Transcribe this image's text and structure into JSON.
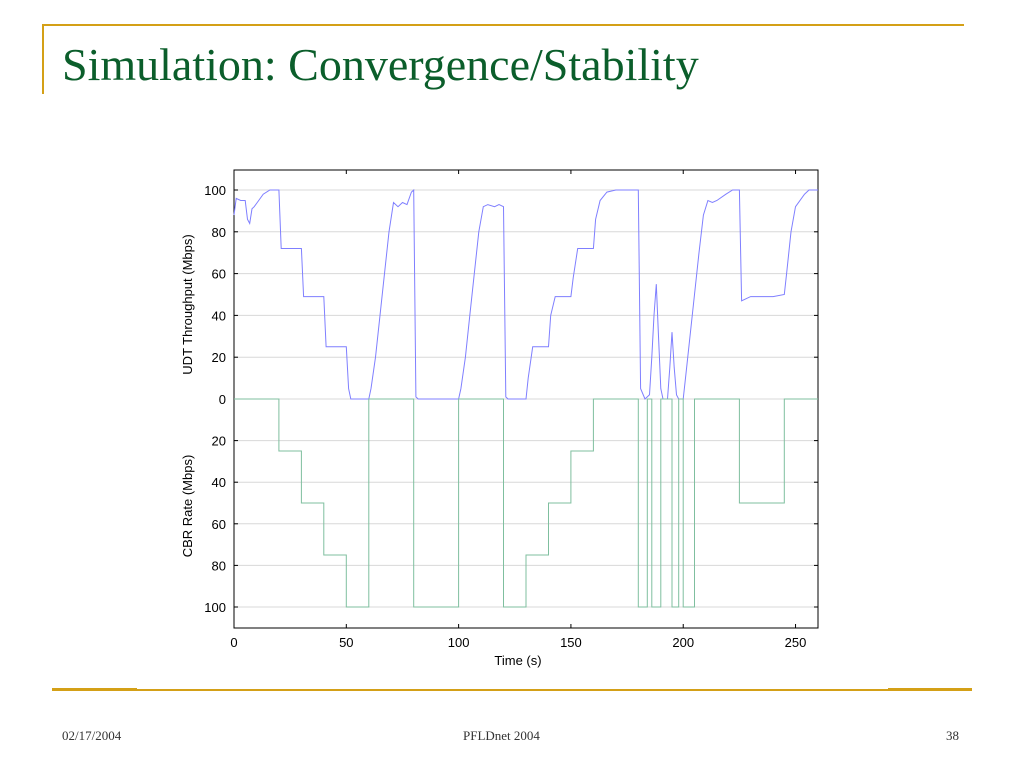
{
  "slide": {
    "title": "Simulation: Convergence/Stability",
    "footer_date": "02/17/2004",
    "footer_event": "PFLDnet 2004",
    "footer_page": "38"
  },
  "colors": {
    "accent": "#d4a017",
    "title": "#0b5e2b",
    "udt_line": "#7f7fff",
    "cbr_line": "#7fbf9f",
    "grid": "#d8d8d8",
    "axes": "#000000"
  },
  "chart_data": {
    "type": "line",
    "title": "",
    "xlabel": "Time (s)",
    "xlim": [
      0,
      260
    ],
    "xticks": [
      0,
      50,
      100,
      150,
      200,
      250
    ],
    "grid": true,
    "panels": [
      {
        "name": "upper",
        "ylabel": "UDT Throughput (Mbps)",
        "ylim": [
          0,
          110
        ],
        "yticks": [
          0,
          20,
          40,
          60,
          80,
          100
        ],
        "series": [
          {
            "points": [
              [
                0,
                88
              ],
              [
                1,
                96
              ],
              [
                3,
                95
              ],
              [
                5,
                95
              ],
              [
                6,
                86
              ],
              [
                7,
                84
              ],
              [
                8,
                91
              ],
              [
                9,
                92
              ],
              [
                11,
                95
              ],
              [
                13,
                98
              ],
              [
                16,
                100
              ],
              [
                20,
                100
              ],
              [
                21,
                72
              ],
              [
                25,
                72
              ],
              [
                30,
                72
              ],
              [
                31,
                49
              ],
              [
                35,
                49
              ],
              [
                40,
                49
              ],
              [
                41,
                25
              ],
              [
                45,
                25
              ],
              [
                50,
                25
              ],
              [
                51,
                5
              ],
              [
                52,
                0
              ],
              [
                60,
                0
              ],
              [
                61,
                5
              ],
              [
                63,
                20
              ],
              [
                65,
                40
              ],
              [
                67,
                60
              ],
              [
                69,
                80
              ],
              [
                71,
                94
              ],
              [
                73,
                92
              ],
              [
                75,
                94
              ],
              [
                77,
                93
              ],
              [
                79,
                99
              ],
              [
                80,
                100
              ],
              [
                81,
                1
              ],
              [
                82,
                0
              ],
              [
                100,
                0
              ],
              [
                101,
                5
              ],
              [
                103,
                20
              ],
              [
                105,
                40
              ],
              [
                107,
                60
              ],
              [
                109,
                80
              ],
              [
                111,
                92
              ],
              [
                113,
                93
              ],
              [
                116,
                92
              ],
              [
                118,
                93
              ],
              [
                120,
                92
              ],
              [
                121,
                1
              ],
              [
                122,
                0
              ],
              [
                130,
                0
              ],
              [
                131,
                10
              ],
              [
                133,
                25
              ],
              [
                140,
                25
              ],
              [
                141,
                40
              ],
              [
                143,
                49
              ],
              [
                150,
                49
              ],
              [
                151,
                58
              ],
              [
                153,
                72
              ],
              [
                160,
                72
              ],
              [
                161,
                86
              ],
              [
                163,
                95
              ],
              [
                166,
                99
              ],
              [
                170,
                100
              ],
              [
                180,
                100
              ],
              [
                181,
                5
              ],
              [
                183,
                0
              ],
              [
                185,
                2
              ],
              [
                186,
                20
              ],
              [
                187,
                40
              ],
              [
                188,
                55
              ],
              [
                189,
                30
              ],
              [
                190,
                5
              ],
              [
                191,
                0
              ],
              [
                193,
                0
              ],
              [
                194,
                15
              ],
              [
                195,
                32
              ],
              [
                196,
                15
              ],
              [
                197,
                2
              ],
              [
                198,
                0
              ],
              [
                200,
                0
              ],
              [
                201,
                10
              ],
              [
                203,
                30
              ],
              [
                205,
                50
              ],
              [
                207,
                70
              ],
              [
                209,
                88
              ],
              [
                211,
                95
              ],
              [
                213,
                94
              ],
              [
                215,
                95
              ],
              [
                219,
                98
              ],
              [
                222,
                100
              ],
              [
                225,
                100
              ],
              [
                226,
                47
              ],
              [
                230,
                49
              ],
              [
                235,
                49
              ],
              [
                240,
                49
              ],
              [
                245,
                50
              ],
              [
                246,
                60
              ],
              [
                248,
                80
              ],
              [
                250,
                92
              ],
              [
                254,
                98
              ],
              [
                256,
                100
              ],
              [
                260,
                100
              ]
            ]
          }
        ]
      },
      {
        "name": "lower",
        "ylabel": "CBR Rate (Mbps)",
        "ylim": [
          0,
          110
        ],
        "yticks": [
          20,
          40,
          60,
          80,
          100
        ],
        "inverted": true,
        "series": [
          {
            "points": [
              [
                0,
                0
              ],
              [
                20,
                0
              ],
              [
                20,
                25
              ],
              [
                30,
                25
              ],
              [
                30,
                50
              ],
              [
                40,
                50
              ],
              [
                40,
                75
              ],
              [
                50,
                75
              ],
              [
                50,
                100
              ],
              [
                60,
                100
              ],
              [
                60,
                0
              ],
              [
                80,
                0
              ],
              [
                80,
                100
              ],
              [
                100,
                100
              ],
              [
                100,
                0
              ],
              [
                120,
                0
              ],
              [
                120,
                100
              ],
              [
                130,
                100
              ],
              [
                130,
                75
              ],
              [
                140,
                75
              ],
              [
                140,
                50
              ],
              [
                150,
                50
              ],
              [
                150,
                25
              ],
              [
                160,
                25
              ],
              [
                160,
                0
              ],
              [
                180,
                0
              ],
              [
                180,
                100
              ],
              [
                184,
                100
              ],
              [
                184,
                0
              ],
              [
                186,
                0
              ],
              [
                186,
                100
              ],
              [
                190,
                100
              ],
              [
                190,
                0
              ],
              [
                195,
                0
              ],
              [
                195,
                100
              ],
              [
                198,
                100
              ],
              [
                198,
                0
              ],
              [
                200,
                0
              ],
              [
                200,
                100
              ],
              [
                205,
                100
              ],
              [
                205,
                0
              ],
              [
                225,
                0
              ],
              [
                225,
                50
              ],
              [
                245,
                50
              ],
              [
                245,
                0
              ],
              [
                260,
                0
              ]
            ]
          }
        ]
      }
    ]
  }
}
